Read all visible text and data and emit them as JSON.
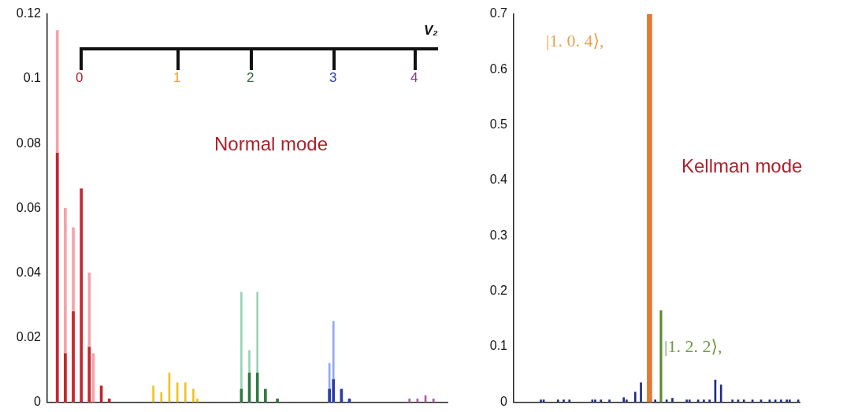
{
  "chart_data": [
    {
      "type": "bar",
      "tick_labels": "y",
      "ylim": [
        0,
        0.12
      ],
      "yticks": [
        0,
        0.02,
        0.04,
        0.06,
        0.08,
        0.1,
        0.12
      ],
      "categories": [
        null,
        null,
        null,
        null,
        null,
        null,
        null,
        null,
        null,
        null,
        null,
        null,
        null,
        null,
        null,
        null,
        null,
        null,
        null,
        null,
        null,
        null,
        null,
        null,
        null,
        null,
        null,
        null,
        null,
        null,
        null,
        null,
        null,
        null,
        null,
        null,
        null,
        null,
        null,
        null,
        null,
        null,
        null,
        null,
        null,
        null,
        null,
        null,
        null,
        null,
        null,
        null,
        null,
        null,
        null,
        null,
        null,
        null,
        null,
        null,
        null,
        null,
        null,
        null,
        null,
        null,
        null,
        null,
        null,
        null,
        null,
        null,
        null,
        null,
        null,
        null,
        null,
        null,
        null,
        null,
        null,
        null,
        null,
        null,
        null,
        null,
        null,
        null,
        null,
        null,
        null,
        null,
        null,
        null,
        null,
        null,
        null,
        null,
        null,
        null
      ],
      "series": [
        {
          "color": "#f4a3ab",
          "values": [
            null,
            null,
            0.115,
            null,
            0.06,
            null,
            0.054,
            null,
            null,
            null,
            0.04,
            0.015,
            null,
            null,
            null,
            null,
            null,
            null,
            null,
            null,
            null,
            null,
            null,
            null,
            null,
            null,
            null,
            null,
            null,
            null,
            null,
            null,
            null,
            null,
            null,
            null,
            null,
            null,
            null,
            null,
            null,
            null,
            null,
            null,
            null,
            null,
            null,
            null,
            null,
            null,
            null,
            null,
            null,
            null,
            null,
            null,
            null,
            null,
            null,
            null,
            null,
            null,
            null,
            null,
            null,
            null,
            null,
            null,
            null,
            null,
            null,
            null,
            null,
            null,
            null,
            null,
            null,
            null,
            null,
            null,
            null,
            null,
            null,
            null,
            null,
            null,
            null,
            null,
            null,
            null,
            null,
            null,
            null,
            null,
            null,
            null,
            null,
            null,
            null,
            null
          ]
        },
        {
          "color": "#c4262e",
          "values": [
            null,
            null,
            0.077,
            null,
            0.015,
            null,
            0.028,
            null,
            0.066,
            null,
            0.017,
            null,
            null,
            0.005,
            null,
            0.001,
            null,
            null,
            null,
            null,
            null,
            null,
            null,
            null,
            null,
            null,
            null,
            null,
            null,
            null,
            null,
            null,
            null,
            null,
            null,
            null,
            null,
            null,
            null,
            null,
            null,
            null,
            null,
            null,
            null,
            null,
            null,
            null,
            null,
            null,
            null,
            null,
            null,
            null,
            null,
            null,
            null,
            null,
            null,
            null,
            null,
            null,
            null,
            null,
            null,
            null,
            null,
            null,
            null,
            null,
            null,
            null,
            null,
            null,
            null,
            null,
            null,
            null,
            null,
            null,
            null,
            null,
            null,
            null,
            null,
            null,
            null,
            null,
            null,
            null,
            null,
            null,
            null,
            null,
            null,
            null,
            null,
            null,
            null,
            null
          ]
        },
        {
          "color": "#f2c31a",
          "values": [
            null,
            null,
            null,
            null,
            null,
            null,
            null,
            null,
            null,
            null,
            null,
            null,
            null,
            null,
            null,
            null,
            null,
            null,
            null,
            null,
            null,
            null,
            null,
            null,
            null,
            null,
            0.005,
            null,
            0.003,
            null,
            0.009,
            null,
            0.006,
            null,
            0.006,
            null,
            0.004,
            0.001,
            null,
            null,
            null,
            null,
            null,
            null,
            null,
            null,
            null,
            null,
            null,
            null,
            null,
            null,
            null,
            null,
            null,
            null,
            null,
            null,
            null,
            null,
            null,
            null,
            null,
            null,
            null,
            null,
            null,
            null,
            null,
            null,
            null,
            null,
            null,
            null,
            null,
            null,
            null,
            null,
            null,
            null,
            null,
            null,
            null,
            null,
            null,
            null,
            null,
            null,
            null,
            null,
            null,
            null,
            null,
            null,
            null,
            null,
            null,
            null,
            null,
            null
          ]
        },
        {
          "color": "#95d4b6",
          "values": [
            null,
            null,
            null,
            null,
            null,
            null,
            null,
            null,
            null,
            null,
            null,
            null,
            null,
            null,
            null,
            null,
            null,
            null,
            null,
            null,
            null,
            null,
            null,
            null,
            null,
            null,
            null,
            null,
            null,
            null,
            null,
            null,
            null,
            null,
            null,
            null,
            null,
            null,
            null,
            null,
            null,
            null,
            null,
            null,
            null,
            null,
            null,
            null,
            0.034,
            null,
            0.016,
            null,
            0.034,
            null,
            null,
            null,
            null,
            null,
            null,
            null,
            null,
            null,
            null,
            null,
            null,
            null,
            null,
            null,
            null,
            null,
            null,
            null,
            null,
            null,
            null,
            null,
            null,
            null,
            null,
            null,
            null,
            null,
            null,
            null,
            null,
            null,
            null,
            null,
            null,
            null,
            null,
            null,
            null,
            null,
            null,
            null,
            null,
            null,
            null,
            null
          ]
        },
        {
          "color": "#2f7a40",
          "values": [
            null,
            null,
            null,
            null,
            null,
            null,
            null,
            null,
            null,
            null,
            null,
            null,
            null,
            null,
            null,
            null,
            null,
            null,
            null,
            null,
            null,
            null,
            null,
            null,
            null,
            null,
            null,
            null,
            null,
            null,
            null,
            null,
            null,
            null,
            null,
            null,
            null,
            null,
            null,
            null,
            null,
            null,
            null,
            null,
            null,
            null,
            null,
            null,
            0.004,
            null,
            0.009,
            null,
            0.009,
            null,
            0.004,
            null,
            null,
            0.001,
            null,
            null,
            null,
            null,
            null,
            null,
            null,
            null,
            null,
            null,
            null,
            null,
            null,
            null,
            null,
            null,
            null,
            null,
            null,
            null,
            null,
            null,
            null,
            null,
            null,
            null,
            null,
            null,
            null,
            null,
            null,
            null,
            null,
            null,
            null,
            null,
            null,
            null,
            null,
            null,
            null,
            null
          ]
        },
        {
          "color": "#8faaf0",
          "values": [
            null,
            null,
            null,
            null,
            null,
            null,
            null,
            null,
            null,
            null,
            null,
            null,
            null,
            null,
            null,
            null,
            null,
            null,
            null,
            null,
            null,
            null,
            null,
            null,
            null,
            null,
            null,
            null,
            null,
            null,
            null,
            null,
            null,
            null,
            null,
            null,
            null,
            null,
            null,
            null,
            null,
            null,
            null,
            null,
            null,
            null,
            null,
            null,
            null,
            null,
            null,
            null,
            null,
            null,
            null,
            null,
            null,
            null,
            null,
            null,
            null,
            null,
            null,
            null,
            null,
            null,
            null,
            null,
            null,
            null,
            0.012,
            0.025,
            null,
            null,
            null,
            null,
            null,
            null,
            null,
            null,
            null,
            null,
            null,
            null,
            null,
            null,
            null,
            null,
            null,
            null,
            null,
            null,
            null,
            null,
            null,
            null,
            null,
            null,
            null,
            null
          ]
        },
        {
          "color": "#2a3ea6",
          "values": [
            null,
            null,
            null,
            null,
            null,
            null,
            null,
            null,
            null,
            null,
            null,
            null,
            null,
            null,
            null,
            null,
            null,
            null,
            null,
            null,
            null,
            null,
            null,
            null,
            null,
            null,
            null,
            null,
            null,
            null,
            null,
            null,
            null,
            null,
            null,
            null,
            null,
            null,
            null,
            null,
            null,
            null,
            null,
            null,
            null,
            null,
            null,
            null,
            null,
            null,
            null,
            null,
            null,
            null,
            null,
            null,
            null,
            null,
            null,
            null,
            null,
            null,
            null,
            null,
            null,
            null,
            null,
            null,
            null,
            null,
            0.004,
            0.007,
            null,
            0.004,
            null,
            0.001,
            null,
            null,
            null,
            null,
            null,
            null,
            null,
            null,
            null,
            null,
            null,
            null,
            null,
            null,
            null,
            null,
            null,
            null,
            null,
            null,
            null,
            null,
            null,
            null
          ]
        },
        {
          "color": "#b45aa2",
          "values": [
            null,
            null,
            null,
            null,
            null,
            null,
            null,
            null,
            null,
            null,
            null,
            null,
            null,
            null,
            null,
            null,
            null,
            null,
            null,
            null,
            null,
            null,
            null,
            null,
            null,
            null,
            null,
            null,
            null,
            null,
            null,
            null,
            null,
            null,
            null,
            null,
            null,
            null,
            null,
            null,
            null,
            null,
            null,
            null,
            null,
            null,
            null,
            null,
            null,
            null,
            null,
            null,
            null,
            null,
            null,
            null,
            null,
            null,
            null,
            null,
            null,
            null,
            null,
            null,
            null,
            null,
            null,
            null,
            null,
            null,
            null,
            null,
            null,
            null,
            null,
            null,
            null,
            null,
            null,
            null,
            null,
            null,
            null,
            null,
            null,
            null,
            null,
            null,
            null,
            null,
            0.001,
            null,
            0.001,
            null,
            0.002,
            null,
            0.001,
            null,
            null,
            null
          ]
        }
      ],
      "annotations": [
        "V₂",
        "0",
        "1",
        "2",
        "3",
        "4",
        "Normal mode"
      ]
    },
    {
      "type": "bar",
      "tick_labels": "y",
      "ylim": [
        0,
        0.7
      ],
      "yticks": [
        0,
        0.1,
        0.2,
        0.3,
        0.4,
        0.5,
        0.6,
        0.7
      ],
      "categories": [
        null,
        null,
        null,
        null,
        null,
        null,
        null,
        null,
        null,
        null,
        null,
        null,
        null,
        null,
        null,
        null,
        null,
        null,
        null,
        null,
        null,
        null,
        null,
        null,
        null,
        null,
        null,
        null,
        null,
        null,
        null,
        null,
        null,
        null,
        null,
        null,
        null,
        null,
        null,
        null,
        null,
        null,
        null,
        null,
        null,
        null,
        null,
        null,
        null,
        null,
        null,
        null,
        null,
        null,
        null,
        null,
        null,
        null,
        null,
        null,
        null,
        null,
        null,
        null,
        null,
        null,
        null,
        null,
        null,
        null,
        null,
        null,
        null,
        null,
        null,
        null,
        null,
        null,
        null,
        null,
        null,
        null,
        null,
        null,
        null,
        null,
        null,
        null,
        null,
        null,
        null,
        null,
        null,
        null,
        null,
        null,
        null,
        null,
        null,
        null
      ],
      "series": [
        {
          "color": "#1f2d80",
          "values": [
            null,
            null,
            null,
            null,
            null,
            null,
            null,
            null,
            null,
            0.004,
            0.004,
            null,
            null,
            null,
            null,
            0.004,
            null,
            0.004,
            null,
            0.004,
            null,
            null,
            null,
            null,
            null,
            null,
            null,
            0.004,
            0.004,
            null,
            0.004,
            null,
            null,
            0.004,
            null,
            null,
            null,
            null,
            0.008,
            0.004,
            null,
            null,
            0.018,
            null,
            0.035,
            null,
            null,
            null,
            null,
            0.004,
            null,
            null,
            null,
            0.004,
            null,
            0.007,
            null,
            null,
            null,
            null,
            0.004,
            0.004,
            null,
            null,
            0.004,
            null,
            0.004,
            null,
            0.004,
            null,
            0.04,
            null,
            0.031,
            null,
            null,
            null,
            0.004,
            null,
            0.004,
            null,
            0.004,
            null,
            null,
            0.004,
            null,
            null,
            0.004,
            null,
            null,
            0.004,
            null,
            0.004,
            null,
            0.004,
            null,
            0.004,
            0.004,
            null,
            null,
            0.004
          ]
        },
        {
          "color": "#e07a32",
          "values": [
            null,
            null,
            null,
            null,
            null,
            null,
            null,
            null,
            null,
            null,
            null,
            null,
            null,
            null,
            null,
            null,
            null,
            null,
            null,
            null,
            null,
            null,
            null,
            null,
            null,
            null,
            null,
            null,
            null,
            null,
            null,
            null,
            null,
            null,
            null,
            null,
            null,
            null,
            null,
            null,
            null,
            null,
            null,
            null,
            null,
            null,
            null,
            0.7,
            null,
            null,
            null,
            null,
            null,
            null,
            null,
            null,
            null,
            null,
            null,
            null,
            null,
            null,
            null,
            null,
            null,
            null,
            null,
            null,
            null,
            null,
            null,
            null,
            null,
            null,
            null,
            null,
            null,
            null,
            null,
            null,
            null,
            null,
            null,
            null,
            null,
            null,
            null,
            null,
            null,
            null,
            null,
            null,
            null,
            null,
            null,
            null,
            null,
            null,
            null,
            null
          ]
        },
        {
          "color": "#5a8a32",
          "values": [
            null,
            null,
            null,
            null,
            null,
            null,
            null,
            null,
            null,
            null,
            null,
            null,
            null,
            null,
            null,
            null,
            null,
            null,
            null,
            null,
            null,
            null,
            null,
            null,
            null,
            null,
            null,
            null,
            null,
            null,
            null,
            null,
            null,
            null,
            null,
            null,
            null,
            null,
            null,
            null,
            null,
            null,
            null,
            null,
            null,
            null,
            null,
            null,
            null,
            null,
            null,
            0.165,
            null,
            null,
            null,
            null,
            null,
            null,
            null,
            null,
            null,
            null,
            null,
            null,
            null,
            null,
            null,
            null,
            null,
            null,
            null,
            null,
            null,
            null,
            null,
            null,
            null,
            null,
            null,
            null,
            null,
            null,
            null,
            null,
            null,
            null,
            null,
            null,
            null,
            null,
            null,
            null,
            null,
            null,
            null,
            null,
            null,
            null,
            null,
            null
          ]
        }
      ],
      "annotations": [
        "|1. 0. 4⟩,",
        "|1. 2. 2⟩,",
        "Kellman mode"
      ]
    }
  ]
}
